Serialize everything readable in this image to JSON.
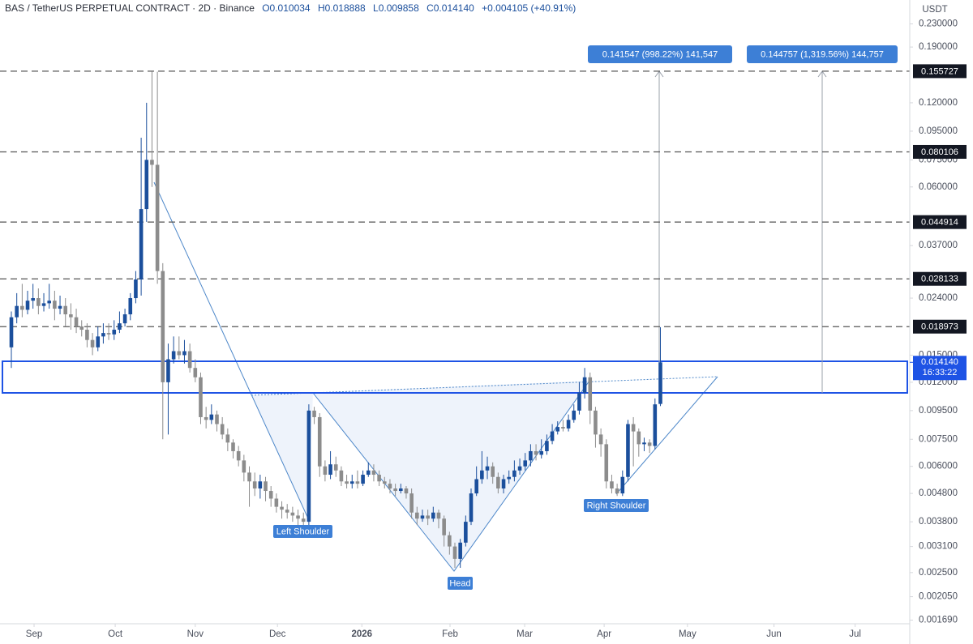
{
  "chart_data": {
    "type": "candlestick",
    "title": "BAS / TetherUS PERPETUAL CONTRACT · 2D · Binance",
    "ohlc_labels": [
      "O0.010034",
      "H0.018888",
      "L0.009858",
      "C0.014140",
      "+0.004105 (+40.91%)"
    ],
    "y_axis_label": "USDT",
    "log_scale": true,
    "up_color": "#1b4f9c",
    "down_color": "#8c8c8c",
    "xlim": [
      -2.1,
      165.8
    ],
    "xticks": [
      {
        "value": 4.2,
        "label": "Sep"
      },
      {
        "value": 19.2,
        "label": "Oct"
      },
      {
        "value": 34,
        "label": "Nov"
      },
      {
        "value": 49.2,
        "label": "Dec"
      },
      {
        "value": 64.8,
        "label": "2026"
      },
      {
        "value": 81.1,
        "label": "Feb"
      },
      {
        "value": 94.9,
        "label": "Mar"
      },
      {
        "value": 109.6,
        "label": "Apr"
      },
      {
        "value": 125,
        "label": "May"
      },
      {
        "value": 141,
        "label": "Jun"
      },
      {
        "value": 156,
        "label": "Jul"
      }
    ],
    "ylim": [
      0.00164,
      0.28
    ],
    "yticks": [
      {
        "value": 0.23,
        "label": "0.230000"
      },
      {
        "value": 0.19,
        "label": "0.190000"
      },
      {
        "value": 0.12,
        "label": "0.120000"
      },
      {
        "value": 0.095,
        "label": "0.095000"
      },
      {
        "value": 0.075,
        "label": "0.075000"
      },
      {
        "value": 0.06,
        "label": "0.060000"
      },
      {
        "value": 0.037,
        "label": "0.037000"
      },
      {
        "value": 0.024,
        "label": "0.024000"
      },
      {
        "value": 0.015,
        "label": "0.015000"
      },
      {
        "value": 0.012,
        "label": "0.012000"
      },
      {
        "value": 0.0095,
        "label": "0.009500"
      },
      {
        "value": 0.0075,
        "label": "0.007500"
      },
      {
        "value": 0.006,
        "label": "0.006000"
      },
      {
        "value": 0.0048,
        "label": "0.004800"
      },
      {
        "value": 0.0038,
        "label": "0.003800"
      },
      {
        "value": 0.0031,
        "label": "0.003100"
      },
      {
        "value": 0.0025,
        "label": "0.002500"
      },
      {
        "value": 0.00205,
        "label": "0.002050"
      },
      {
        "value": 0.00169,
        "label": "0.001690"
      }
    ],
    "levels": [
      {
        "value": 0.155727,
        "label": "0.155727"
      },
      {
        "value": 0.080106,
        "label": "0.080106"
      },
      {
        "value": 0.044914,
        "label": "0.044914"
      },
      {
        "value": 0.028133,
        "label": "0.028133"
      },
      {
        "value": 0.018973,
        "label": "0.018973"
      }
    ],
    "last_price": {
      "value": 0.01414,
      "label": "0.014140"
    },
    "countdown": "16:33:22",
    "annotations": [
      "Left Shoulder",
      "Head",
      "Right Shoulder",
      "0.141547 (998.22%) 141,547",
      "0.144757 (1,319.56%) 144,757"
    ],
    "x": [
      0,
      1,
      2,
      3,
      4,
      5,
      6,
      7,
      8,
      9,
      10,
      11,
      12,
      13,
      14,
      15,
      16,
      17,
      18,
      19,
      20,
      21,
      22,
      23,
      24,
      25,
      26,
      27,
      28,
      29,
      30,
      31,
      32,
      33,
      34,
      35,
      36,
      37,
      38,
      39,
      40,
      41,
      42,
      43,
      44,
      45,
      46,
      47,
      48,
      49,
      50,
      51,
      52,
      53,
      54,
      55,
      56,
      57,
      58,
      59,
      60,
      61,
      62,
      63,
      64,
      65,
      66,
      67,
      68,
      69,
      70,
      71,
      72,
      73,
      74,
      75,
      76,
      77,
      78,
      79,
      80,
      81,
      82,
      83,
      84,
      85,
      86,
      87,
      88,
      89,
      90,
      91,
      92,
      93,
      94,
      95,
      96,
      97,
      98,
      99,
      100,
      101,
      102,
      103,
      104,
      105,
      106,
      107,
      108,
      109,
      110,
      111,
      112,
      113,
      114,
      115,
      116,
      117,
      118,
      119,
      120
    ],
    "candles": {
      "open": [
        0.016,
        0.0205,
        0.0225,
        0.0218,
        0.0235,
        0.024,
        0.0225,
        0.023,
        0.0235,
        0.022,
        0.0225,
        0.021,
        0.0205,
        0.019,
        0.0185,
        0.017,
        0.016,
        0.0175,
        0.018,
        0.0178,
        0.0185,
        0.0195,
        0.021,
        0.024,
        0.028,
        0.05,
        0.075,
        0.072,
        0.03,
        0.012,
        0.0145,
        0.0155,
        0.015,
        0.0155,
        0.0135,
        0.0125,
        0.009,
        0.0088,
        0.0092,
        0.0085,
        0.0078,
        0.0073,
        0.0068,
        0.0063,
        0.0057,
        0.0053,
        0.005,
        0.0053,
        0.0049,
        0.0046,
        0.0043,
        0.0042,
        0.0041,
        0.004,
        0.0039,
        0.0038,
        0.0095,
        0.009,
        0.006,
        0.0056,
        0.0061,
        0.0058,
        0.0053,
        0.0052,
        0.0053,
        0.0052,
        0.0056,
        0.0058,
        0.0056,
        0.0053,
        0.0052,
        0.005,
        0.0049,
        0.005,
        0.0048,
        0.0041,
        0.0039,
        0.004,
        0.0039,
        0.0041,
        0.0039,
        0.0034,
        0.0031,
        0.0028,
        0.0032,
        0.0038,
        0.0048,
        0.0054,
        0.0058,
        0.006,
        0.0055,
        0.005,
        0.0054,
        0.0055,
        0.0058,
        0.006,
        0.0063,
        0.0068,
        0.0066,
        0.0068,
        0.0074,
        0.008,
        0.0083,
        0.0082,
        0.0088,
        0.0095,
        0.011,
        0.0125,
        0.0095,
        0.0078,
        0.0072,
        0.0053,
        0.005,
        0.0048,
        0.0055,
        0.0085,
        0.008,
        0.0072,
        0.0073,
        0.0071,
        0.010034
      ],
      "high": [
        0.0215,
        0.025,
        0.027,
        0.0255,
        0.027,
        0.026,
        0.025,
        0.027,
        0.0255,
        0.0245,
        0.024,
        0.023,
        0.022,
        0.02,
        0.0195,
        0.018,
        0.019,
        0.0195,
        0.0195,
        0.02,
        0.0215,
        0.022,
        0.025,
        0.03,
        0.09,
        0.12,
        0.155,
        0.155,
        0.032,
        0.0165,
        0.0175,
        0.0175,
        0.017,
        0.0165,
        0.0145,
        0.013,
        0.0098,
        0.01,
        0.0095,
        0.009,
        0.0082,
        0.0075,
        0.0071,
        0.0066,
        0.006,
        0.0057,
        0.0056,
        0.0055,
        0.0051,
        0.0048,
        0.0045,
        0.0044,
        0.0043,
        0.0042,
        0.0041,
        0.01,
        0.0098,
        0.0093,
        0.0063,
        0.0068,
        0.0065,
        0.006,
        0.0056,
        0.0056,
        0.0058,
        0.0058,
        0.0062,
        0.0061,
        0.0058,
        0.0055,
        0.0054,
        0.0052,
        0.0052,
        0.0051,
        0.005,
        0.0043,
        0.0042,
        0.0042,
        0.0043,
        0.0042,
        0.004,
        0.0035,
        0.0032,
        0.0033,
        0.004,
        0.005,
        0.006,
        0.0068,
        0.0065,
        0.0062,
        0.0057,
        0.0056,
        0.0058,
        0.0063,
        0.0064,
        0.0067,
        0.0072,
        0.0072,
        0.0075,
        0.0078,
        0.0085,
        0.0087,
        0.0088,
        0.0092,
        0.01,
        0.012,
        0.0135,
        0.013,
        0.0098,
        0.0082,
        0.0075,
        0.0056,
        0.0052,
        0.0058,
        0.0088,
        0.009,
        0.0082,
        0.0076,
        0.0075,
        0.0105,
        0.018888
      ],
      "low": [
        0.0135,
        0.0195,
        0.0205,
        0.021,
        0.022,
        0.021,
        0.0215,
        0.022,
        0.02,
        0.021,
        0.019,
        0.0185,
        0.018,
        0.0175,
        0.016,
        0.015,
        0.0155,
        0.0165,
        0.017,
        0.017,
        0.018,
        0.019,
        0.02,
        0.023,
        0.0245,
        0.045,
        0.06,
        0.027,
        0.0075,
        0.0078,
        0.014,
        0.0145,
        0.014,
        0.013,
        0.012,
        0.0085,
        0.0082,
        0.0085,
        0.008,
        0.0075,
        0.0068,
        0.0064,
        0.006,
        0.0053,
        0.0043,
        0.0047,
        0.0046,
        0.0045,
        0.0043,
        0.0041,
        0.0039,
        0.0039,
        0.0038,
        0.0037,
        0.0036,
        0.0037,
        0.0085,
        0.0055,
        0.0053,
        0.0054,
        0.0055,
        0.0051,
        0.005,
        0.005,
        0.005,
        0.0051,
        0.0055,
        0.0053,
        0.0051,
        0.005,
        0.0048,
        0.0047,
        0.0048,
        0.0046,
        0.0039,
        0.0037,
        0.0038,
        0.0037,
        0.0038,
        0.0036,
        0.0031,
        0.0029,
        0.0026,
        0.0026,
        0.0031,
        0.0037,
        0.0047,
        0.0052,
        0.0054,
        0.0052,
        0.0048,
        0.0048,
        0.0052,
        0.0053,
        0.0056,
        0.0058,
        0.006,
        0.0063,
        0.0064,
        0.0066,
        0.0072,
        0.0078,
        0.008,
        0.008,
        0.0086,
        0.0092,
        0.0105,
        0.0085,
        0.007,
        0.0065,
        0.005,
        0.0048,
        0.0047,
        0.0047,
        0.0053,
        0.006,
        0.0065,
        0.0068,
        0.0067,
        0.0069,
        0.009858
      ],
      "close": [
        0.0205,
        0.0225,
        0.0218,
        0.0235,
        0.024,
        0.0225,
        0.023,
        0.0235,
        0.022,
        0.0225,
        0.021,
        0.0205,
        0.019,
        0.0185,
        0.017,
        0.016,
        0.0175,
        0.018,
        0.0178,
        0.0185,
        0.0195,
        0.021,
        0.024,
        0.028,
        0.05,
        0.075,
        0.072,
        0.03,
        0.012,
        0.0145,
        0.0155,
        0.015,
        0.0155,
        0.0135,
        0.0125,
        0.009,
        0.0088,
        0.0092,
        0.0085,
        0.0078,
        0.0073,
        0.0068,
        0.0063,
        0.0057,
        0.0053,
        0.005,
        0.0053,
        0.0049,
        0.0046,
        0.0043,
        0.0042,
        0.0041,
        0.004,
        0.0039,
        0.0038,
        0.0095,
        0.009,
        0.006,
        0.0056,
        0.0061,
        0.0058,
        0.0053,
        0.0052,
        0.0053,
        0.0052,
        0.0056,
        0.0058,
        0.0056,
        0.0053,
        0.0052,
        0.005,
        0.0049,
        0.005,
        0.0048,
        0.0041,
        0.0039,
        0.004,
        0.0039,
        0.0041,
        0.0039,
        0.0034,
        0.0031,
        0.0028,
        0.0032,
        0.0038,
        0.0048,
        0.0054,
        0.0058,
        0.006,
        0.0055,
        0.005,
        0.0054,
        0.0055,
        0.0058,
        0.006,
        0.0063,
        0.0068,
        0.0066,
        0.0068,
        0.0074,
        0.008,
        0.0083,
        0.0082,
        0.0088,
        0.0095,
        0.011,
        0.0125,
        0.0095,
        0.0078,
        0.0072,
        0.0053,
        0.005,
        0.0048,
        0.0055,
        0.0085,
        0.008,
        0.0072,
        0.0073,
        0.0071,
        0.01,
        0.01414
      ]
    }
  }
}
